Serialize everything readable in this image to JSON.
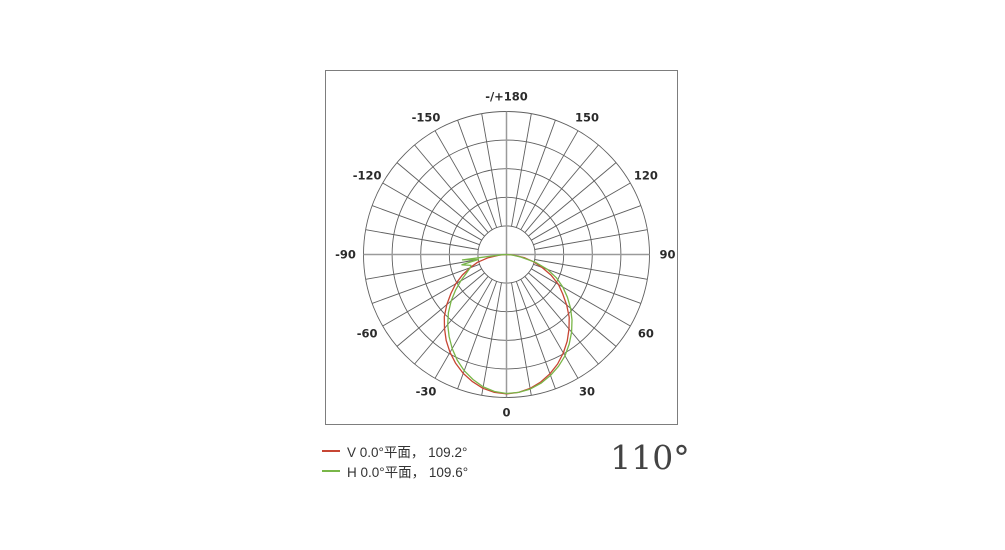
{
  "chart_data": {
    "type": "polar-line",
    "title": "",
    "angle_unit": "degrees",
    "zero_position": "bottom",
    "positive_direction": "clockwise-to-right",
    "spoke_step_deg": 10,
    "label_step_deg": 30,
    "rings_normalized": [
      0.2,
      0.4,
      0.6,
      0.8,
      1.0
    ],
    "grid_color": "#5f5f5f",
    "axis_color": "#9a9a9a",
    "label_color": "#2b2b2b",
    "angle_ticks": [
      {
        "angle": 0,
        "label": "0"
      },
      {
        "angle": 30,
        "label": "30"
      },
      {
        "angle": 60,
        "label": "60"
      },
      {
        "angle": 90,
        "label": "90"
      },
      {
        "angle": 120,
        "label": "120"
      },
      {
        "angle": 150,
        "label": "150"
      },
      {
        "angle": 180,
        "label": "-/+180"
      },
      {
        "angle": -150,
        "label": "-150"
      },
      {
        "angle": -120,
        "label": "-120"
      },
      {
        "angle": -90,
        "label": "-90"
      },
      {
        "angle": -60,
        "label": "-60"
      },
      {
        "angle": -30,
        "label": "-30"
      }
    ],
    "series": [
      {
        "id": "v-plane",
        "name": "V 0.0°平面， 109.2°",
        "color": "#c74634",
        "beam_angle_deg": 109.2,
        "points": [
          [
            -90,
            0
          ],
          [
            -85,
            0.05
          ],
          [
            -80,
            0.13
          ],
          [
            -75,
            0.21
          ],
          [
            -70,
            0.27
          ],
          [
            -65,
            0.34
          ],
          [
            -60,
            0.41
          ],
          [
            -55,
            0.475
          ],
          [
            -50,
            0.545
          ],
          [
            -45,
            0.615
          ],
          [
            -40,
            0.675
          ],
          [
            -35,
            0.735
          ],
          [
            -30,
            0.79
          ],
          [
            -25,
            0.84
          ],
          [
            -20,
            0.885
          ],
          [
            -15,
            0.92
          ],
          [
            -10,
            0.95
          ],
          [
            -5,
            0.968
          ],
          [
            0,
            0.975
          ],
          [
            5,
            0.968
          ],
          [
            10,
            0.951
          ],
          [
            15,
            0.923
          ],
          [
            20,
            0.888
          ],
          [
            25,
            0.845
          ],
          [
            30,
            0.795
          ],
          [
            35,
            0.74
          ],
          [
            40,
            0.68
          ],
          [
            45,
            0.62
          ],
          [
            50,
            0.55
          ],
          [
            55,
            0.48
          ],
          [
            60,
            0.42
          ],
          [
            65,
            0.345
          ],
          [
            70,
            0.265
          ],
          [
            75,
            0.195
          ],
          [
            80,
            0.125
          ],
          [
            85,
            0.05
          ],
          [
            90,
            0
          ]
        ]
      },
      {
        "id": "h-plane",
        "name": "H 0.0°平面， 109.6°",
        "color": "#79b648",
        "beam_angle_deg": 109.6,
        "points": [
          [
            -90,
            0
          ],
          [
            -87,
            0.03
          ],
          [
            -83,
            0.31
          ],
          [
            -80,
            0.2
          ],
          [
            -77,
            0.32
          ],
          [
            -73,
            0.26
          ],
          [
            -70,
            0.27
          ],
          [
            -65,
            0.31
          ],
          [
            -60,
            0.37
          ],
          [
            -55,
            0.435
          ],
          [
            -50,
            0.505
          ],
          [
            -45,
            0.575
          ],
          [
            -40,
            0.64
          ],
          [
            -35,
            0.7
          ],
          [
            -30,
            0.76
          ],
          [
            -25,
            0.815
          ],
          [
            -20,
            0.865
          ],
          [
            -15,
            0.905
          ],
          [
            -10,
            0.94
          ],
          [
            -5,
            0.962
          ],
          [
            0,
            0.972
          ],
          [
            5,
            0.968
          ],
          [
            10,
            0.956
          ],
          [
            15,
            0.932
          ],
          [
            20,
            0.9
          ],
          [
            25,
            0.862
          ],
          [
            30,
            0.818
          ],
          [
            35,
            0.765
          ],
          [
            40,
            0.708
          ],
          [
            45,
            0.648
          ],
          [
            50,
            0.585
          ],
          [
            55,
            0.52
          ],
          [
            60,
            0.455
          ],
          [
            65,
            0.385
          ],
          [
            70,
            0.305
          ],
          [
            75,
            0.21
          ],
          [
            80,
            0.1
          ],
          [
            85,
            0.04
          ],
          [
            90,
            0
          ]
        ]
      }
    ],
    "legend_position": "bottom-left",
    "annotation": "110°"
  },
  "annotation": {
    "text": "110°"
  }
}
